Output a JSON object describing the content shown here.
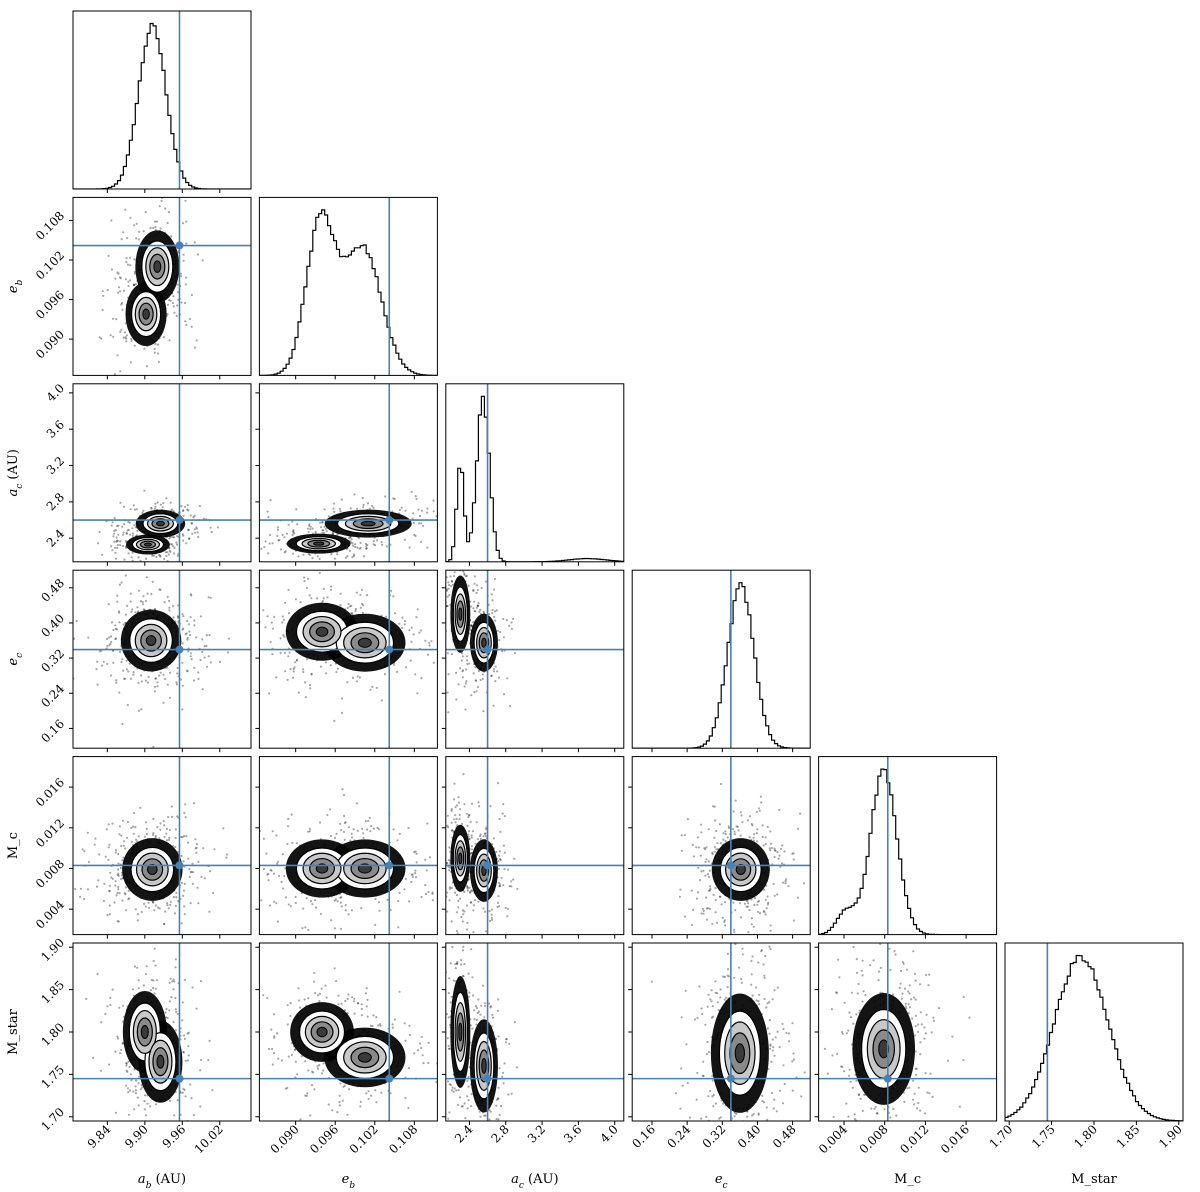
{
  "chart_data": {
    "type": "corner",
    "parameters": [
      {
        "key": "a_b",
        "label_main": "a",
        "label_sub": "b",
        "label_unit": " (AU)",
        "range": [
          9.785,
          10.07
        ],
        "ticks": [
          "9.84",
          "9.90",
          "9.96",
          "10.02"
        ],
        "truth": 9.9555,
        "hist": {
          "center": 9.912,
          "sigma": 0.022,
          "components": [
            [
              1,
              9.912,
              0.022
            ]
          ]
        }
      },
      {
        "key": "e_b",
        "label_main": "e",
        "label_sub": "b",
        "label_unit": "",
        "range": [
          0.0845,
          0.1115
        ],
        "ticks": [
          "0.090",
          "0.096",
          "0.102",
          "0.108"
        ],
        "truth": 0.1042,
        "hist": {
          "components": [
            [
              1.0,
              0.0938,
              0.0022
            ],
            [
              0.83,
              0.1002,
              0.0028
            ]
          ]
        }
      },
      {
        "key": "a_c",
        "label_main": "a",
        "label_sub": "c",
        "label_unit": " (AU)",
        "range": [
          2.14,
          4.1
        ],
        "ticks": [
          "2.4",
          "2.8",
          "3.2",
          "3.6",
          "4.0"
        ],
        "truth": 2.6,
        "hist": {
          "components": [
            [
              0.62,
              2.3,
              0.04
            ],
            [
              1.0,
              2.55,
              0.07
            ],
            [
              0.02,
              3.7,
              0.2
            ]
          ]
        }
      },
      {
        "key": "e_c",
        "label_main": "e",
        "label_sub": "c",
        "label_unit": "",
        "range": [
          0.115,
          0.52
        ],
        "ticks": [
          "0.16",
          "0.24",
          "0.32",
          "0.40",
          "0.48"
        ],
        "truth": 0.3395,
        "hist": {
          "components": [
            [
              1.0,
              0.362,
              0.03
            ]
          ]
        }
      },
      {
        "key": "M_c",
        "label_main": "M_c",
        "label_sub": "",
        "label_unit": "",
        "range": [
          0.0015,
          0.019
        ],
        "ticks": [
          "0.004",
          "0.008",
          "0.012",
          "0.016"
        ],
        "truth": 0.0083,
        "hist": {
          "components": [
            [
              1.0,
              0.0079,
              0.0013
            ],
            [
              0.14,
              0.0042,
              0.0009
            ]
          ]
        }
      },
      {
        "key": "M_star",
        "label_main": "M_star",
        "label_sub": "",
        "label_unit": "",
        "range": [
          1.695,
          1.905
        ],
        "ticks": [
          "1.70",
          "1.75",
          "1.80",
          "1.85",
          "1.90"
        ],
        "truth": 1.745,
        "hist": {
          "components": [
            [
              1.0,
              1.785,
              0.032
            ]
          ]
        }
      }
    ],
    "pair_modes": {
      "1_0": [
        [
          9.902,
          0.0938,
          0.015,
          0.0022
        ],
        [
          9.92,
          0.101,
          0.016,
          0.0025
        ]
      ],
      "2_0": [
        [
          9.905,
          2.33,
          0.016,
          0.05
        ],
        [
          9.925,
          2.56,
          0.018,
          0.07
        ]
      ],
      "2_1": [
        [
          0.0935,
          2.34,
          0.0022,
          0.05
        ],
        [
          0.101,
          2.56,
          0.003,
          0.07
        ]
      ],
      "3_0": [
        [
          9.91,
          0.36,
          0.022,
          0.032
        ]
      ],
      "3_1": [
        [
          0.094,
          0.38,
          0.0025,
          0.03
        ],
        [
          0.1005,
          0.355,
          0.0028,
          0.03
        ]
      ],
      "3_2": [
        [
          2.3,
          0.42,
          0.05,
          0.04
        ],
        [
          2.56,
          0.355,
          0.07,
          0.03
        ]
      ],
      "4_0": [
        [
          9.912,
          0.0079,
          0.022,
          0.0014
        ]
      ],
      "4_1": [
        [
          0.094,
          0.008,
          0.0025,
          0.0013
        ],
        [
          0.1005,
          0.008,
          0.0028,
          0.0013
        ]
      ],
      "4_2": [
        [
          2.3,
          0.009,
          0.05,
          0.0015
        ],
        [
          2.56,
          0.0078,
          0.07,
          0.0014
        ]
      ],
      "4_3": [
        [
          0.362,
          0.0079,
          0.03,
          0.0014
        ]
      ],
      "5_0": [
        [
          9.9,
          1.8,
          0.016,
          0.022
        ],
        [
          9.925,
          1.765,
          0.016,
          0.022
        ]
      ],
      "5_1": [
        [
          0.094,
          1.8,
          0.0022,
          0.016
        ],
        [
          0.1005,
          1.77,
          0.0028,
          0.016
        ]
      ],
      "5_2": [
        [
          2.3,
          1.8,
          0.05,
          0.03
        ],
        [
          2.56,
          1.76,
          0.07,
          0.025
        ]
      ],
      "5_3": [
        [
          0.36,
          1.775,
          0.03,
          0.032
        ]
      ],
      "5_4": [
        [
          0.0079,
          1.78,
          0.0014,
          0.03
        ]
      ]
    },
    "colors": {
      "truth": "#4682b4",
      "hist": "#000000",
      "points": "#000000",
      "contour_fill": "#333333"
    }
  }
}
